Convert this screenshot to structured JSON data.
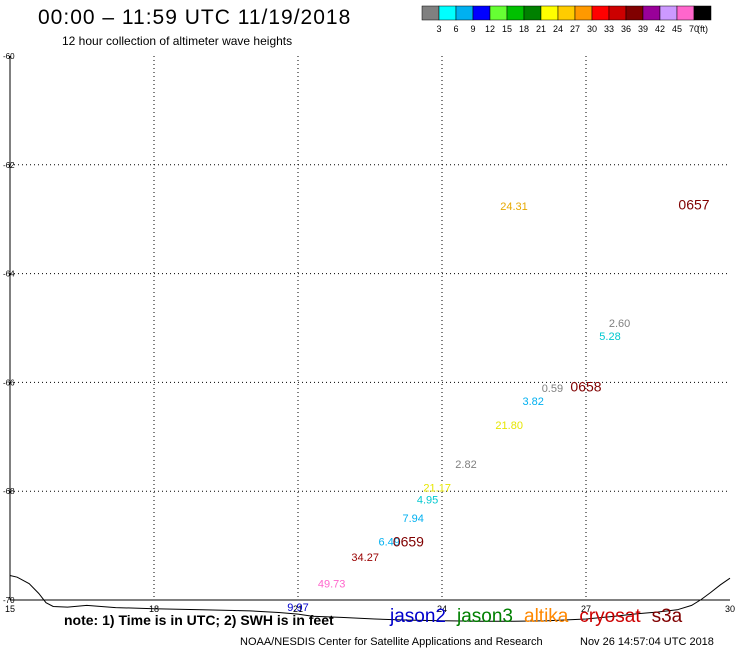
{
  "header": {
    "title": "00:00 – 11:59 UTC 11/19/2018",
    "subtitle": "12 hour collection of altimeter wave heights"
  },
  "colorbar": {
    "colors": [
      "#808080",
      "#00ffff",
      "#00b0f0",
      "#0000ff",
      "#66ff33",
      "#00c000",
      "#008000",
      "#ffff00",
      "#ffcc00",
      "#ff9900",
      "#ff0000",
      "#cc0000",
      "#800000",
      "#990099",
      "#cc99ff",
      "#ff66cc",
      "#000000"
    ],
    "labels": [
      "3",
      "6",
      "9",
      "12",
      "15",
      "18",
      "21",
      "24",
      "27",
      "30",
      "33",
      "36",
      "39",
      "42",
      "45",
      "70"
    ],
    "unit": "(ft)"
  },
  "map": {
    "lon_range": [
      15,
      30
    ],
    "lat_range": [
      -70,
      -60
    ],
    "lon_ticks": [
      "15",
      "18",
      "21",
      "24",
      "27",
      "30"
    ],
    "lat_ticks": [
      "-60",
      "-62",
      "-64",
      "-66",
      "-68",
      "-70"
    ],
    "grid": "dotted",
    "swh_labels": [
      {
        "text": "24.31",
        "lon": 25.5,
        "lat": -62.83,
        "color": "#e6a800"
      },
      {
        "text": "2.60",
        "lon": 27.7,
        "lat": -64.98,
        "color": "#808080"
      },
      {
        "text": "5.28",
        "lon": 27.5,
        "lat": -65.22,
        "color": "#00c8d0"
      },
      {
        "text": "0.59",
        "lon": 26.3,
        "lat": -66.18,
        "color": "#808080"
      },
      {
        "text": "3.82",
        "lon": 25.9,
        "lat": -66.42,
        "color": "#00b0f0"
      },
      {
        "text": "21.80",
        "lon": 25.4,
        "lat": -66.86,
        "color": "#e6e600"
      },
      {
        "text": "2.82",
        "lon": 24.5,
        "lat": -67.57,
        "color": "#808080"
      },
      {
        "text": "21.17",
        "lon": 23.9,
        "lat": -68.01,
        "color": "#e6e600"
      },
      {
        "text": "4.95",
        "lon": 23.7,
        "lat": -68.23,
        "color": "#00c8d0"
      },
      {
        "text": "7.94",
        "lon": 23.4,
        "lat": -68.57,
        "color": "#00b0f0"
      },
      {
        "text": "6.49",
        "lon": 22.9,
        "lat": -69.0,
        "color": "#00b0f0"
      },
      {
        "text": "34.27",
        "lon": 22.4,
        "lat": -69.28,
        "color": "#990000"
      },
      {
        "text": "49.73",
        "lon": 21.7,
        "lat": -69.77,
        "color": "#ff66cc"
      },
      {
        "text": "9.97",
        "lon": 21.0,
        "lat": -70.2,
        "color": "#0000cc"
      }
    ],
    "time_labels": [
      {
        "text": "0657",
        "lon": 29.25,
        "lat": -62.82,
        "color": "#800000"
      },
      {
        "text": "0658",
        "lon": 27.0,
        "lat": -66.17,
        "color": "#800000"
      },
      {
        "text": "0659",
        "lon": 23.3,
        "lat": -69.02,
        "color": "#800000"
      }
    ],
    "coastline_lonlat": [
      [
        15.0,
        -69.55
      ],
      [
        15.15,
        -69.58
      ],
      [
        15.4,
        -69.7
      ],
      [
        15.6,
        -69.88
      ],
      [
        15.75,
        -70.05
      ],
      [
        15.9,
        -70.12
      ],
      [
        16.2,
        -70.13
      ],
      [
        16.6,
        -70.1
      ],
      [
        17.2,
        -70.14
      ],
      [
        18.0,
        -70.16
      ],
      [
        19.0,
        -70.18
      ],
      [
        20.0,
        -70.2
      ],
      [
        20.6,
        -70.23
      ],
      [
        21.0,
        -70.26
      ],
      [
        21.3,
        -70.3
      ],
      [
        21.9,
        -70.32
      ],
      [
        22.6,
        -70.35
      ],
      [
        23.3,
        -70.37
      ],
      [
        24.0,
        -70.38
      ],
      [
        24.8,
        -70.39
      ],
      [
        25.5,
        -70.39
      ],
      [
        26.2,
        -70.38
      ],
      [
        27.0,
        -70.35
      ],
      [
        27.6,
        -70.3
      ],
      [
        28.1,
        -70.25
      ],
      [
        28.5,
        -70.22
      ],
      [
        28.9,
        -70.18
      ],
      [
        29.2,
        -70.1
      ],
      [
        29.4,
        -69.99
      ],
      [
        29.6,
        -69.86
      ],
      [
        29.8,
        -69.72
      ],
      [
        30.0,
        -69.6
      ]
    ]
  },
  "note": "note: 1) Time is in UTC; 2) SWH is in feet",
  "legend": [
    {
      "name": "jason2",
      "color": "#0000cc"
    },
    {
      "name": "jason3",
      "color": "#008000"
    },
    {
      "name": "altika",
      "color": "#ff8800"
    },
    {
      "name": "cryosat",
      "color": "#cc0000"
    },
    {
      "name": "s3a",
      "color": "#800000"
    }
  ],
  "footer": {
    "left": "NOAA/NESDIS Center for Satellite Applications and Research",
    "right": "Nov 26 14:57:04 UTC 2018"
  }
}
